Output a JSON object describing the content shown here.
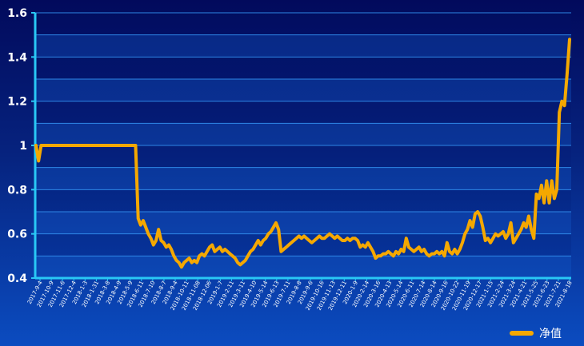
{
  "chart_data": {
    "type": "line",
    "title": "",
    "xlabel": "",
    "ylabel": "",
    "ylim": [
      0.4,
      1.6
    ],
    "y_ticks": [
      "0.4",
      "0.6",
      "0.8",
      "1",
      "1.2",
      "1.4",
      "1.6"
    ],
    "x_tick_labels": [
      "2017-9-4",
      "2017-10-9",
      "2017-11-6",
      "2017-12-4",
      "2018-1-3",
      "2018-1-31",
      "2018-3-8",
      "2018-4-9",
      "2018-5-9",
      "2018-6-11",
      "2018-7-10",
      "2018-8-7",
      "2018-9-4",
      "2018-10-11",
      "2018-11-08",
      "2018-12-06",
      "2019-1-7",
      "2019-2-11",
      "2019-3-11",
      "2019-4-10",
      "2019-5-14",
      "2019-6-13",
      "2019-7-11",
      "2019-8-8",
      "2019-9-6",
      "2019-10-16",
      "2019-11-13",
      "2019-12-11",
      "2020-1-9",
      "2020-2-14",
      "2020-3-16",
      "2020-4-13",
      "2020-5-14",
      "2020-6-11",
      "2020-7-14",
      "2020-8-14",
      "2020-9-16",
      "2020-10-22",
      "2020-11-19",
      "2020-12-17",
      "2021-1-15",
      "2021-2-24",
      "2021-3-24",
      "2021-4-21",
      "2021-5-25",
      "2021-6-23",
      "2021-7-21",
      "2021-8-18"
    ],
    "series": [
      {
        "name": "净值",
        "color": "#f5a800",
        "values": [
          1.0,
          0.93,
          1.0,
          1.0,
          1.0,
          1.0,
          1.0,
          1.0,
          1.0,
          1.0,
          1.0,
          1.0,
          1.0,
          1.0,
          1.0,
          1.0,
          1.0,
          1.0,
          1.0,
          1.0,
          1.0,
          1.0,
          1.0,
          1.0,
          1.0,
          1.0,
          1.0,
          1.0,
          1.0,
          1.0,
          1.0,
          1.0,
          1.0,
          1.0,
          1.0,
          1.0,
          1.0,
          1.0,
          1.0,
          1.0,
          0.67,
          0.64,
          0.66,
          0.63,
          0.6,
          0.58,
          0.55,
          0.57,
          0.62,
          0.57,
          0.56,
          0.54,
          0.55,
          0.53,
          0.5,
          0.48,
          0.47,
          0.45,
          0.47,
          0.48,
          0.49,
          0.47,
          0.48,
          0.47,
          0.5,
          0.51,
          0.5,
          0.52,
          0.54,
          0.55,
          0.52,
          0.53,
          0.54,
          0.52,
          0.53,
          0.52,
          0.51,
          0.5,
          0.49,
          0.47,
          0.46,
          0.47,
          0.48,
          0.5,
          0.52,
          0.53,
          0.55,
          0.57,
          0.55,
          0.57,
          0.58,
          0.6,
          0.61,
          0.63,
          0.65,
          0.62,
          0.52,
          0.53,
          0.54,
          0.55,
          0.56,
          0.57,
          0.58,
          0.59,
          0.58,
          0.59,
          0.58,
          0.57,
          0.56,
          0.57,
          0.58,
          0.59,
          0.58,
          0.58,
          0.59,
          0.6,
          0.59,
          0.58,
          0.59,
          0.58,
          0.57,
          0.57,
          0.58,
          0.57,
          0.58,
          0.58,
          0.57,
          0.54,
          0.55,
          0.54,
          0.56,
          0.54,
          0.52,
          0.49,
          0.5,
          0.5,
          0.51,
          0.51,
          0.52,
          0.51,
          0.5,
          0.52,
          0.51,
          0.53,
          0.52,
          0.58,
          0.54,
          0.53,
          0.52,
          0.53,
          0.54,
          0.52,
          0.53,
          0.51,
          0.5,
          0.51,
          0.51,
          0.52,
          0.51,
          0.52,
          0.5,
          0.56,
          0.52,
          0.51,
          0.53,
          0.51,
          0.53,
          0.56,
          0.6,
          0.62,
          0.66,
          0.63,
          0.69,
          0.7,
          0.68,
          0.63,
          0.57,
          0.58,
          0.56,
          0.58,
          0.6,
          0.59,
          0.6,
          0.61,
          0.58,
          0.6,
          0.65,
          0.56,
          0.58,
          0.6,
          0.62,
          0.65,
          0.63,
          0.68,
          0.62,
          0.58,
          0.78,
          0.76,
          0.82,
          0.74,
          0.84,
          0.74,
          0.84,
          0.76,
          0.8,
          1.15,
          1.2,
          1.18,
          1.32,
          1.48
        ]
      }
    ],
    "legend": {
      "position": "bottom-right",
      "label": "净值"
    },
    "grid": true
  }
}
